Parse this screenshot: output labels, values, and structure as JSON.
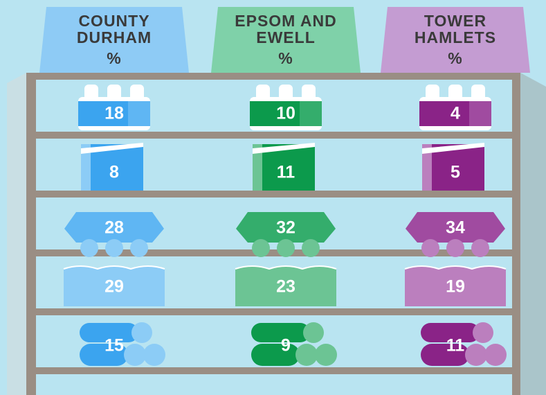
{
  "columns": [
    {
      "title": [
        "COUNTY",
        "DURHAM"
      ],
      "unit": "%",
      "values": [
        18,
        8,
        28,
        29,
        15
      ]
    },
    {
      "title": [
        "EPSOM AND",
        "EWELL"
      ],
      "unit": "%",
      "values": [
        10,
        11,
        32,
        23,
        9
      ]
    },
    {
      "title": [
        "TOWER",
        "HAMLETS"
      ],
      "unit": "%",
      "values": [
        4,
        5,
        34,
        19,
        11
      ]
    }
  ]
}
